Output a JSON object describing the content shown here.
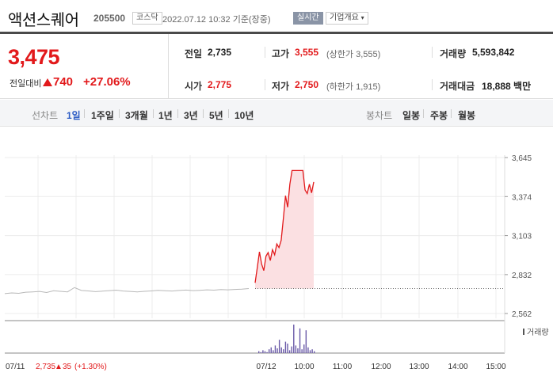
{
  "header": {
    "name": "액션스퀘어",
    "code": "205500",
    "market": "코스닥",
    "time": "2022.07.12 10:32 기준(장중)",
    "realtime": "실시간",
    "info": "기업개요"
  },
  "quote": {
    "price": "3,475",
    "change_label": "전일대비",
    "change_value": "740",
    "change_pct": "+27.06%",
    "prev_close_label": "전일",
    "prev_close": "2,735",
    "open_label": "시가",
    "open": "2,775",
    "high_label": "고가",
    "high": "3,555",
    "upper_limit": "(상한가 3,555)",
    "low_label": "저가",
    "low": "2,750",
    "lower_limit": "(하한가 1,915)",
    "volume_label": "거래량",
    "volume": "5,593,842",
    "amount_label": "거래대금",
    "amount": "18,888 백만"
  },
  "tabs": {
    "line_title": "선차트",
    "periods": [
      "1일",
      "1주일",
      "3개월",
      "1년",
      "3년",
      "5년",
      "10년"
    ],
    "active_period": "1일",
    "candle_title": "봉차트",
    "candles": [
      "일봉",
      "주봉",
      "월봉"
    ]
  },
  "chart_data": {
    "type": "line",
    "y_ticks": [
      "3,645",
      "3,374",
      "3,103",
      "2,832",
      "2,562"
    ],
    "y_tick_values": [
      3645,
      3374,
      3103,
      2832,
      2562
    ],
    "ylim": [
      2562,
      3645
    ],
    "x_ticks": [
      "07/11",
      "07/12",
      "10:00",
      "11:00",
      "12:00",
      "13:00",
      "14:00",
      "15:00"
    ],
    "reference_value": 2735,
    "volume_label": "거래량",
    "prev_summary": {
      "date": "07/11",
      "close": "2,735",
      "change": "35",
      "pct": "(+1.30%)"
    },
    "prev_day_series": [
      2700,
      2705,
      2702,
      2710,
      2712,
      2715,
      2708,
      2720,
      2716,
      2712,
      2742,
      2722,
      2719,
      2714,
      2717,
      2721,
      2724,
      2718,
      2715,
      2712,
      2716,
      2719,
      2723,
      2720,
      2718,
      2722,
      2725,
      2721,
      2723,
      2726,
      2724,
      2728,
      2726,
      2729,
      2731,
      2735
    ],
    "today_series": [
      2775,
      2880,
      2990,
      2905,
      2860,
      2960,
      2985,
      2930,
      3005,
      2970,
      3045,
      3020,
      3070,
      3220,
      3380,
      3300,
      3460,
      3555,
      3555,
      3555,
      3555,
      3555,
      3555,
      3420,
      3395,
      3460,
      3400,
      3475
    ],
    "today_volume": [
      2,
      1,
      3,
      2,
      1,
      4,
      6,
      3,
      8,
      5,
      14,
      6,
      4,
      12,
      10,
      3,
      7,
      30,
      8,
      5,
      26,
      4,
      9,
      24,
      6,
      3,
      4,
      2
    ]
  }
}
